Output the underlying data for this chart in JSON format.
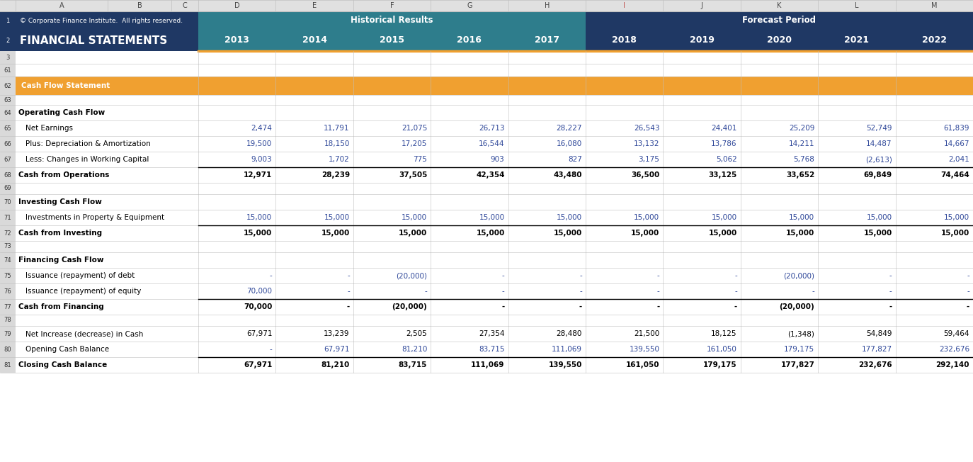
{
  "header_bg_dark": "#1F3864",
  "header_bg_teal": "#2E7D8C",
  "header_bg_orange": "#F0A030",
  "col_header_bg": "#D9D9D9",
  "grid_line_color": "#BFBFBF",
  "blue_text": "#2E4799",
  "years_historical": [
    "2013",
    "2014",
    "2015",
    "2016",
    "2017"
  ],
  "years_forecast": [
    "2018",
    "2019",
    "2020",
    "2021",
    "2022"
  ],
  "section_title": "Cash Flow Statement",
  "rows": [
    {
      "rn": 1,
      "label": "",
      "values": [
        "",
        "",
        "",
        "",
        "",
        "",
        "",
        "",
        "",
        ""
      ],
      "bold": false,
      "indent": false,
      "blue": false,
      "type": "header1"
    },
    {
      "rn": 2,
      "label": "",
      "values": [
        "",
        "",
        "",
        "",
        "",
        "",
        "",
        "",
        "",
        ""
      ],
      "bold": false,
      "indent": false,
      "blue": false,
      "type": "header2"
    },
    {
      "rn": 3,
      "label": "",
      "values": [
        "",
        "",
        "",
        "",
        "",
        "",
        "",
        "",
        "",
        ""
      ],
      "bold": false,
      "indent": false,
      "blue": false,
      "type": "empty"
    },
    {
      "rn": 61,
      "label": "",
      "values": [
        "",
        "",
        "",
        "",
        "",
        "",
        "",
        "",
        "",
        ""
      ],
      "bold": false,
      "indent": false,
      "blue": false,
      "type": "empty"
    },
    {
      "rn": 62,
      "label": "Cash Flow Statement",
      "values": [
        "",
        "",
        "",
        "",
        "",
        "",
        "",
        "",
        "",
        ""
      ],
      "bold": true,
      "indent": false,
      "blue": false,
      "type": "section"
    },
    {
      "rn": 63,
      "label": "",
      "values": [
        "",
        "",
        "",
        "",
        "",
        "",
        "",
        "",
        "",
        ""
      ],
      "bold": false,
      "indent": false,
      "blue": false,
      "type": "empty"
    },
    {
      "rn": 64,
      "label": "Operating Cash Flow",
      "values": [
        "",
        "",
        "",
        "",
        "",
        "",
        "",
        "",
        "",
        ""
      ],
      "bold": true,
      "indent": false,
      "blue": false,
      "type": "data"
    },
    {
      "rn": 65,
      "label": "Net Earnings",
      "values": [
        "2,474",
        "11,791",
        "21,075",
        "26,713",
        "28,227",
        "26,543",
        "24,401",
        "25,209",
        "52,749",
        "61,839"
      ],
      "bold": false,
      "indent": true,
      "blue": true,
      "type": "data"
    },
    {
      "rn": 66,
      "label": "Plus: Depreciation & Amortization",
      "values": [
        "19,500",
        "18,150",
        "17,205",
        "16,544",
        "16,080",
        "13,132",
        "13,786",
        "14,211",
        "14,487",
        "14,667"
      ],
      "bold": false,
      "indent": true,
      "blue": true,
      "type": "data"
    },
    {
      "rn": 67,
      "label": "Less: Changes in Working Capital",
      "values": [
        "9,003",
        "1,702",
        "775",
        "903",
        "827",
        "3,175",
        "5,062",
        "5,768",
        "(2,613)",
        "2,041"
      ],
      "bold": false,
      "indent": true,
      "blue": true,
      "type": "data"
    },
    {
      "rn": 68,
      "label": "Cash from Operations",
      "values": [
        "12,971",
        "28,239",
        "37,505",
        "42,354",
        "43,480",
        "36,500",
        "33,125",
        "33,652",
        "69,849",
        "74,464"
      ],
      "bold": true,
      "indent": false,
      "blue": false,
      "type": "data",
      "border_top": true
    },
    {
      "rn": 69,
      "label": "",
      "values": [
        "",
        "",
        "",
        "",
        "",
        "",
        "",
        "",
        "",
        ""
      ],
      "bold": false,
      "indent": false,
      "blue": false,
      "type": "empty"
    },
    {
      "rn": 70,
      "label": "Investing Cash Flow",
      "values": [
        "",
        "",
        "",
        "",
        "",
        "",
        "",
        "",
        "",
        ""
      ],
      "bold": true,
      "indent": false,
      "blue": false,
      "type": "data"
    },
    {
      "rn": 71,
      "label": "Investments in Property & Equipment",
      "values": [
        "15,000",
        "15,000",
        "15,000",
        "15,000",
        "15,000",
        "15,000",
        "15,000",
        "15,000",
        "15,000",
        "15,000"
      ],
      "bold": false,
      "indent": true,
      "blue": true,
      "type": "data"
    },
    {
      "rn": 72,
      "label": "Cash from Investing",
      "values": [
        "15,000",
        "15,000",
        "15,000",
        "15,000",
        "15,000",
        "15,000",
        "15,000",
        "15,000",
        "15,000",
        "15,000"
      ],
      "bold": true,
      "indent": false,
      "blue": false,
      "type": "data",
      "border_top": true
    },
    {
      "rn": 73,
      "label": "",
      "values": [
        "",
        "",
        "",
        "",
        "",
        "",
        "",
        "",
        "",
        ""
      ],
      "bold": false,
      "indent": false,
      "blue": false,
      "type": "empty"
    },
    {
      "rn": 74,
      "label": "Financing Cash Flow",
      "values": [
        "",
        "",
        "",
        "",
        "",
        "",
        "",
        "",
        "",
        ""
      ],
      "bold": true,
      "indent": false,
      "blue": false,
      "type": "data"
    },
    {
      "rn": 75,
      "label": "Issuance (repayment) of debt",
      "values": [
        "-",
        "-",
        "(20,000)",
        "-",
        "-",
        "-",
        "-",
        "(20,000)",
        "-",
        "-"
      ],
      "bold": false,
      "indent": true,
      "blue": true,
      "type": "data"
    },
    {
      "rn": 76,
      "label": "Issuance (repayment) of equity",
      "values": [
        "70,000",
        "-",
        "-",
        "-",
        "-",
        "-",
        "-",
        "-",
        "-",
        "-"
      ],
      "bold": false,
      "indent": true,
      "blue": true,
      "type": "data"
    },
    {
      "rn": 77,
      "label": "Cash from Financing",
      "values": [
        "70,000",
        "-",
        "(20,000)",
        "-",
        "-",
        "-",
        "-",
        "(20,000)",
        "-",
        "-"
      ],
      "bold": true,
      "indent": false,
      "blue": false,
      "type": "data",
      "border_top": true
    },
    {
      "rn": 78,
      "label": "",
      "values": [
        "",
        "",
        "",
        "",
        "",
        "",
        "",
        "",
        "",
        ""
      ],
      "bold": false,
      "indent": false,
      "blue": false,
      "type": "empty"
    },
    {
      "rn": 79,
      "label": "Net Increase (decrease) in Cash",
      "values": [
        "67,971",
        "13,239",
        "2,505",
        "27,354",
        "28,480",
        "21,500",
        "18,125",
        "(1,348)",
        "54,849",
        "59,464"
      ],
      "bold": false,
      "indent": true,
      "blue": false,
      "type": "data"
    },
    {
      "rn": 80,
      "label": "Opening Cash Balance",
      "values": [
        "-",
        "67,971",
        "81,210",
        "83,715",
        "111,069",
        "139,550",
        "161,050",
        "179,175",
        "177,827",
        "232,676"
      ],
      "bold": false,
      "indent": true,
      "blue": true,
      "type": "data"
    },
    {
      "rn": 81,
      "label": "Closing Cash Balance",
      "values": [
        "67,971",
        "81,210",
        "83,715",
        "111,069",
        "139,550",
        "161,050",
        "179,175",
        "177,827",
        "232,676",
        "292,140"
      ],
      "bold": true,
      "indent": false,
      "blue": false,
      "type": "data",
      "border_top": true
    }
  ],
  "col_letters": [
    "A",
    "B",
    "C",
    "D",
    "E",
    "F",
    "G",
    "H",
    "I",
    "J",
    "K",
    "L",
    "M"
  ]
}
